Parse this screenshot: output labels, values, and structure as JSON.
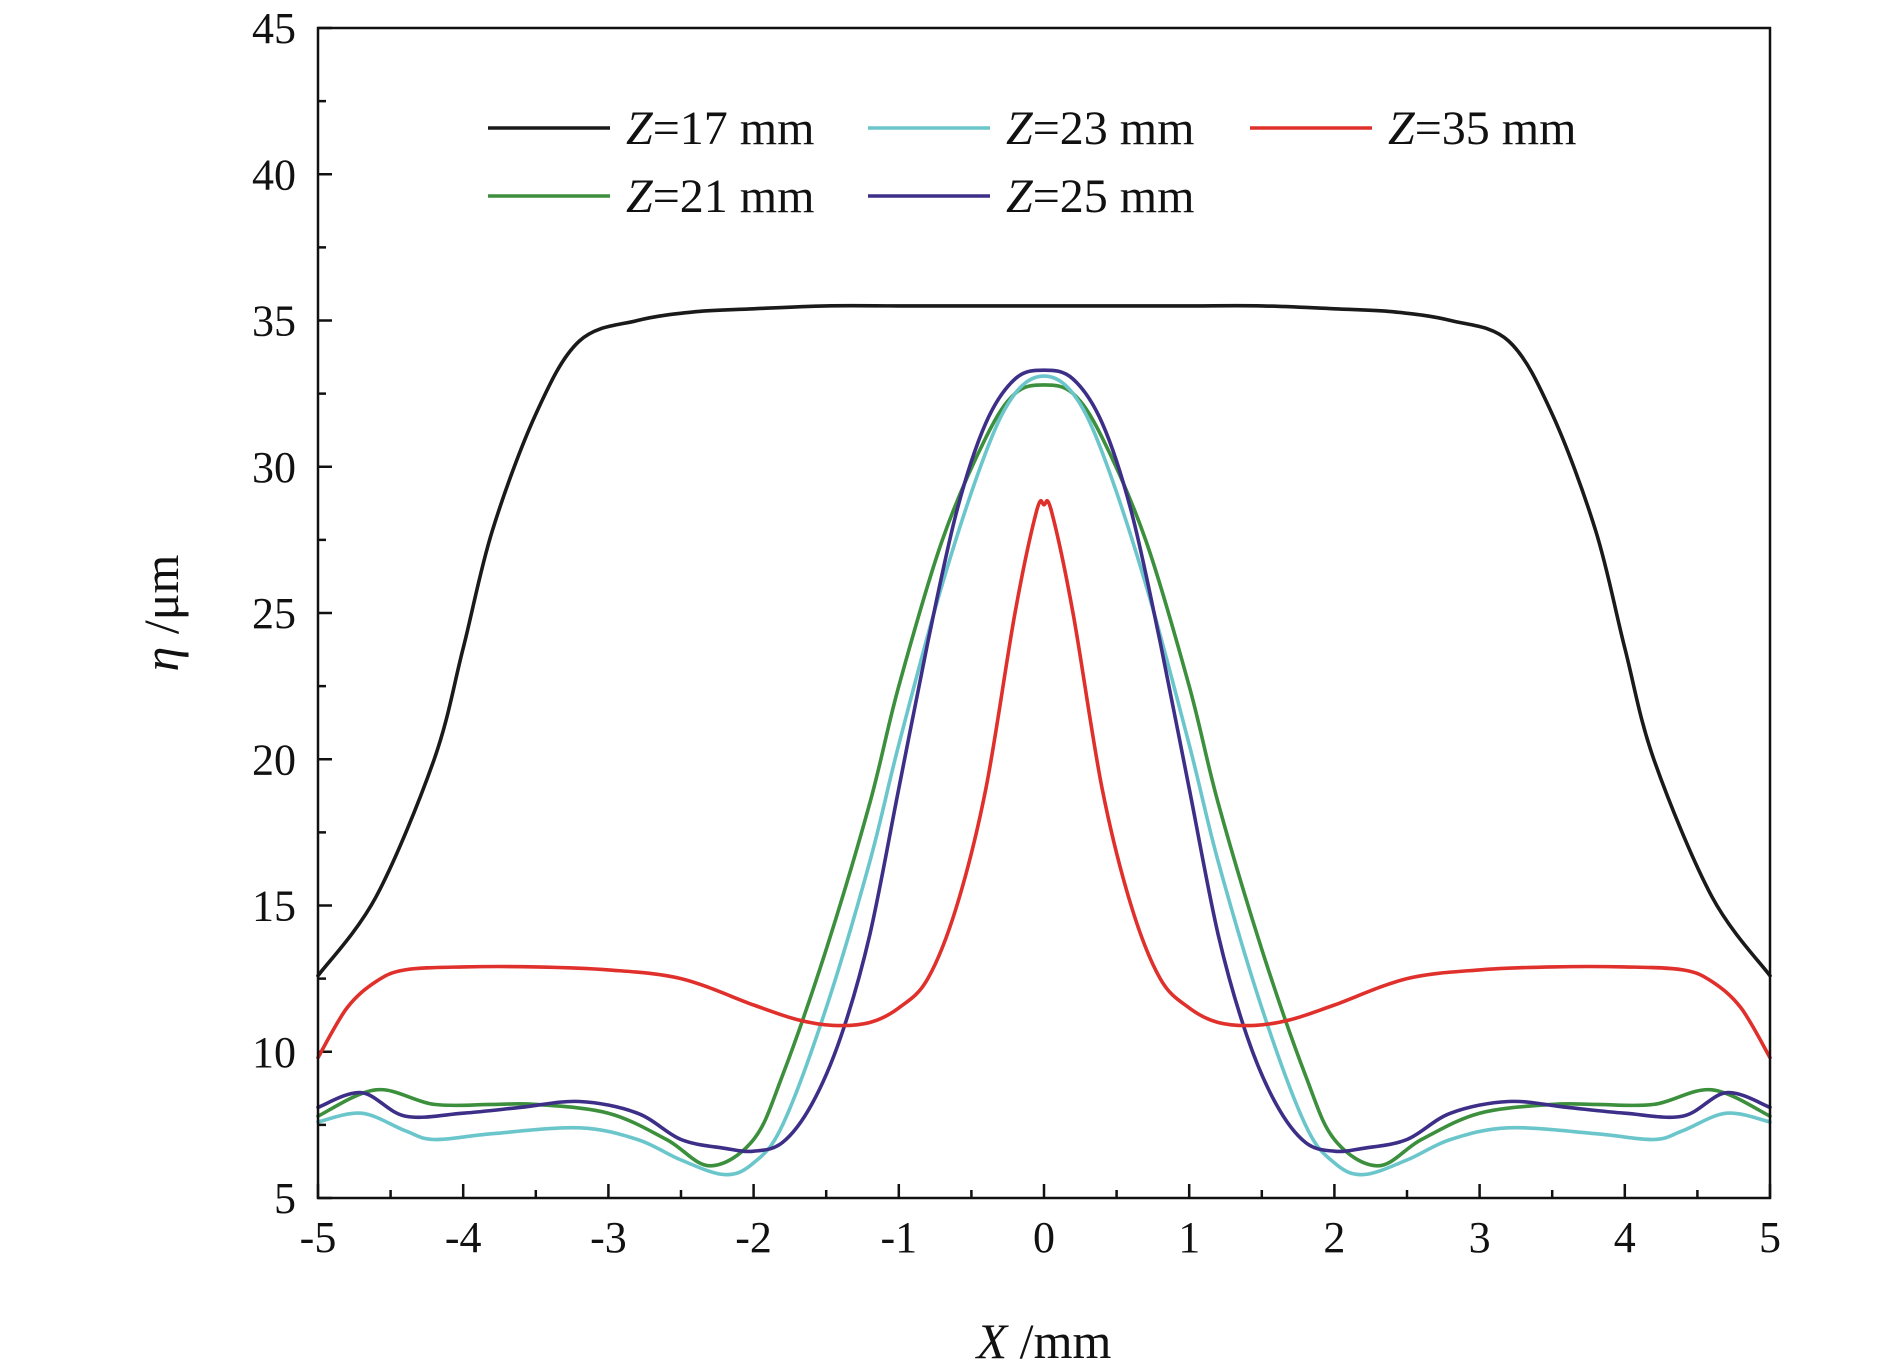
{
  "chart_data": {
    "type": "line",
    "title": "",
    "xlabel": {
      "var": "X",
      "unit": " /mm"
    },
    "ylabel": {
      "var": "η",
      "unit": " /μm"
    },
    "xlim": [
      -5,
      5
    ],
    "ylim": [
      5,
      45
    ],
    "xticks": [
      -5,
      -4,
      -3,
      -2,
      -1,
      0,
      1,
      2,
      3,
      4,
      5
    ],
    "xtick_labels": [
      "-5",
      "-4",
      "-3",
      "-2",
      "-1",
      "0",
      "1",
      "2",
      "3",
      "4",
      "5"
    ],
    "yticks": [
      5,
      10,
      15,
      20,
      25,
      30,
      35,
      40,
      45
    ],
    "ytick_labels": [
      "5",
      "10",
      "15",
      "20",
      "25",
      "30",
      "35",
      "40",
      "45"
    ],
    "grid": false,
    "legend_position": "top",
    "series": [
      {
        "var": "Z",
        "rest": "=17 mm",
        "color": "#1a1a1a",
        "x": [
          -5,
          -4.6,
          -4.2,
          -4.0,
          -3.8,
          -3.5,
          -3.2,
          -2.8,
          -2.4,
          -2.0,
          -1.5,
          -1.0,
          -0.5,
          0,
          0.5,
          1.0,
          1.5,
          2.0,
          2.4,
          2.8,
          3.2,
          3.5,
          3.8,
          4.0,
          4.2,
          4.6,
          5
        ],
        "y": [
          12.6,
          15.3,
          20.0,
          23.8,
          27.8,
          31.8,
          34.3,
          35.0,
          35.3,
          35.4,
          35.5,
          35.5,
          35.5,
          35.5,
          35.5,
          35.5,
          35.5,
          35.4,
          35.3,
          35.0,
          34.3,
          31.8,
          27.8,
          23.8,
          20.0,
          15.3,
          12.6
        ]
      },
      {
        "var": "Z",
        "rest": "=21 mm",
        "color": "#3c8f3c",
        "x": [
          -5,
          -4.6,
          -4.2,
          -3.8,
          -3.5,
          -3.0,
          -2.6,
          -2.3,
          -2.0,
          -1.8,
          -1.5,
          -1.2,
          -1.0,
          -0.7,
          -0.4,
          -0.2,
          0,
          0.2,
          0.4,
          0.7,
          1.0,
          1.2,
          1.5,
          1.8,
          2.0,
          2.3,
          2.6,
          3.0,
          3.5,
          3.8,
          4.2,
          4.6,
          5
        ],
        "y": [
          7.8,
          8.7,
          8.2,
          8.2,
          8.2,
          7.9,
          7.0,
          6.1,
          7.0,
          9.2,
          13.5,
          18.5,
          22.5,
          27.5,
          31.0,
          32.5,
          32.8,
          32.5,
          31.0,
          27.5,
          22.5,
          18.5,
          13.5,
          9.2,
          7.0,
          6.1,
          7.0,
          7.9,
          8.2,
          8.2,
          8.2,
          8.7,
          7.8
        ]
      },
      {
        "var": "Z",
        "rest": "=23 mm",
        "color": "#6bc6cc",
        "x": [
          -5,
          -4.7,
          -4.4,
          -4.2,
          -3.8,
          -3.2,
          -2.8,
          -2.5,
          -2.2,
          -2.0,
          -1.8,
          -1.5,
          -1.2,
          -1.0,
          -0.7,
          -0.4,
          -0.2,
          0,
          0.2,
          0.4,
          0.7,
          1.0,
          1.2,
          1.5,
          1.8,
          2.0,
          2.2,
          2.5,
          2.8,
          3.2,
          3.8,
          4.2,
          4.4,
          4.7,
          5
        ],
        "y": [
          7.6,
          7.9,
          7.3,
          7.0,
          7.2,
          7.4,
          7.0,
          6.3,
          5.8,
          6.2,
          7.5,
          11.5,
          16.5,
          20.5,
          26.0,
          30.5,
          32.5,
          33.1,
          32.5,
          30.5,
          26.0,
          20.5,
          16.5,
          11.5,
          7.5,
          6.2,
          5.8,
          6.3,
          7.0,
          7.4,
          7.2,
          7.0,
          7.3,
          7.9,
          7.6
        ]
      },
      {
        "var": "Z",
        "rest": "=25 mm",
        "color": "#3d2f88",
        "x": [
          -5,
          -4.7,
          -4.4,
          -4.0,
          -3.6,
          -3.2,
          -2.8,
          -2.5,
          -2.2,
          -2.0,
          -1.8,
          -1.6,
          -1.4,
          -1.2,
          -1.0,
          -0.8,
          -0.6,
          -0.4,
          -0.2,
          0,
          0.2,
          0.4,
          0.6,
          0.8,
          1.0,
          1.2,
          1.4,
          1.6,
          1.8,
          2.0,
          2.2,
          2.5,
          2.8,
          3.2,
          3.6,
          4.0,
          4.4,
          4.7,
          5
        ],
        "y": [
          8.1,
          8.6,
          7.8,
          7.9,
          8.1,
          8.3,
          7.9,
          7.0,
          6.7,
          6.6,
          6.9,
          8.2,
          10.5,
          14.0,
          19.0,
          24.0,
          28.5,
          31.5,
          33.0,
          33.3,
          33.0,
          31.5,
          28.5,
          24.0,
          19.0,
          14.0,
          10.5,
          8.2,
          6.9,
          6.6,
          6.7,
          7.0,
          7.9,
          8.3,
          8.1,
          7.9,
          7.8,
          8.6,
          8.1
        ]
      },
      {
        "var": "Z",
        "rest": "=35 mm",
        "color": "#e0302c",
        "x": [
          -5,
          -4.8,
          -4.6,
          -4.4,
          -4.0,
          -3.5,
          -3.0,
          -2.5,
          -2.0,
          -1.7,
          -1.45,
          -1.2,
          -1.0,
          -0.8,
          -0.6,
          -0.4,
          -0.2,
          -0.05,
          0,
          0.05,
          0.2,
          0.4,
          0.6,
          0.8,
          1.0,
          1.2,
          1.45,
          1.7,
          2.0,
          2.5,
          3.0,
          3.5,
          4.0,
          4.4,
          4.6,
          4.8,
          5
        ],
        "y": [
          9.8,
          11.5,
          12.4,
          12.8,
          12.9,
          12.9,
          12.8,
          12.5,
          11.6,
          11.1,
          10.9,
          11.0,
          11.5,
          12.5,
          15.0,
          19.0,
          25.0,
          28.5,
          28.7,
          28.5,
          25.0,
          19.0,
          15.0,
          12.5,
          11.5,
          11.0,
          10.9,
          11.1,
          11.6,
          12.5,
          12.8,
          12.9,
          12.9,
          12.8,
          12.4,
          11.5,
          9.8
        ]
      }
    ]
  }
}
